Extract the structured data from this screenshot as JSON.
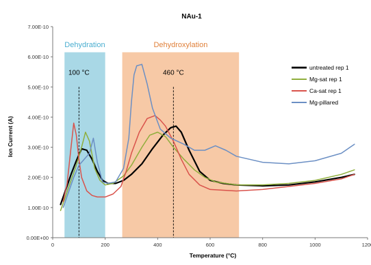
{
  "chart_data": {
    "type": "line",
    "title": "NAu-1",
    "xlabel": "Temperature (°C)",
    "ylabel": "Ion Current (A)",
    "xlim": [
      0,
      1200
    ],
    "ylim": [
      0,
      7e-10
    ],
    "x_ticks": [
      0,
      200,
      400,
      600,
      800,
      1000,
      1200
    ],
    "x_tick_labels": [
      "0",
      "200",
      "400",
      "600",
      "800",
      "1000",
      "1200"
    ],
    "y_ticks": [
      0,
      1e-10,
      2e-10,
      3e-10,
      4e-10,
      5e-10,
      6e-10,
      7e-10
    ],
    "y_tick_labels": [
      "0.00E+00",
      "1.00E-10",
      "2.00E-10",
      "3.00E-10",
      "4.00E-10",
      "5.00E-10",
      "6.00E-10",
      "7.00E-10"
    ],
    "grid": false,
    "legend_position": "right",
    "regions": [
      {
        "label": "Dehydration",
        "x": [
          45,
          200
        ],
        "color": "#a9d8e6",
        "text_color": "#4aaed0"
      },
      {
        "label": "Dehydroxylation",
        "x": [
          265,
          710
        ],
        "color": "#f7c9a6",
        "text_color": "#e0803a"
      }
    ],
    "annotations": [
      {
        "label": "100 °C",
        "x": 100,
        "line_top": 5e-10,
        "label_y": 5.4e-10
      },
      {
        "label": "460 °C",
        "x": 460,
        "line_top": 5e-10,
        "label_y": 5.4e-10
      }
    ],
    "series": [
      {
        "name": "untreated rep 1",
        "color": "#000000",
        "width": 2.2,
        "x": [
          30,
          50,
          70,
          90,
          110,
          130,
          150,
          170,
          190,
          210,
          240,
          270,
          300,
          340,
          380,
          420,
          450,
          470,
          490,
          520,
          560,
          600,
          650,
          700,
          800,
          900,
          1000,
          1100,
          1150
        ],
        "y": [
          1.1e-10,
          1.6e-10,
          2.1e-10,
          2.55e-10,
          2.95e-10,
          2.9e-10,
          2.6e-10,
          2.2e-10,
          1.9e-10,
          1.8e-10,
          1.8e-10,
          1.9e-10,
          2.1e-10,
          2.45e-10,
          2.95e-10,
          3.4e-10,
          3.65e-10,
          3.7e-10,
          3.5e-10,
          2.9e-10,
          2.2e-10,
          1.9e-10,
          1.8e-10,
          1.75e-10,
          1.72e-10,
          1.75e-10,
          1.85e-10,
          2e-10,
          2.1e-10
        ]
      },
      {
        "name": "Mg-sat rep 1",
        "color": "#8fae3b",
        "width": 1.5,
        "x": [
          30,
          50,
          70,
          90,
          110,
          125,
          140,
          160,
          180,
          200,
          230,
          270,
          300,
          340,
          370,
          400,
          430,
          460,
          500,
          540,
          580,
          620,
          700,
          800,
          900,
          1000,
          1100,
          1150
        ],
        "y": [
          9e-11,
          1.4e-10,
          1.9e-10,
          2.4e-10,
          3e-10,
          3.5e-10,
          3.2e-10,
          2.3e-10,
          1.9e-10,
          1.75e-10,
          1.8e-10,
          2.05e-10,
          2.4e-10,
          3e-10,
          3.4e-10,
          3.5e-10,
          3.35e-10,
          3e-10,
          2.6e-10,
          2.25e-10,
          2e-10,
          1.85e-10,
          1.75e-10,
          1.75e-10,
          1.8e-10,
          1.9e-10,
          2.1e-10,
          2.25e-10
        ]
      },
      {
        "name": "Ca-sat rep 1",
        "color": "#d9524b",
        "width": 1.5,
        "x": [
          40,
          55,
          70,
          80,
          90,
          100,
          110,
          130,
          150,
          170,
          200,
          230,
          260,
          280,
          300,
          330,
          360,
          390,
          410,
          430,
          460,
          490,
          520,
          560,
          600,
          700,
          800,
          900,
          1000,
          1100,
          1150
        ],
        "y": [
          1.2e-10,
          1.8e-10,
          3e-10,
          3.8e-10,
          3.4e-10,
          2.6e-10,
          2e-10,
          1.55e-10,
          1.4e-10,
          1.35e-10,
          1.35e-10,
          1.45e-10,
          1.7e-10,
          2.2e-10,
          2.8e-10,
          3.5e-10,
          3.95e-10,
          4.05e-10,
          3.9e-10,
          3.7e-10,
          3.2e-10,
          2.6e-10,
          2.1e-10,
          1.75e-10,
          1.6e-10,
          1.55e-10,
          1.6e-10,
          1.7e-10,
          1.8e-10,
          1.95e-10,
          2.1e-10
        ]
      },
      {
        "name": "Mg-pillared",
        "color": "#6b8fc4",
        "width": 1.5,
        "x": [
          40,
          60,
          80,
          100,
          120,
          140,
          155,
          170,
          190,
          210,
          240,
          270,
          290,
          300,
          310,
          320,
          340,
          360,
          380,
          410,
          450,
          500,
          540,
          580,
          620,
          660,
          700,
          800,
          900,
          1000,
          1100,
          1150
        ],
        "y": [
          1e-10,
          1.5e-10,
          2e-10,
          2.4e-10,
          2.6e-10,
          2.8e-10,
          3.3e-10,
          2.5e-10,
          1.85e-10,
          1.8e-10,
          1.85e-10,
          2.3e-10,
          3.3e-10,
          4.5e-10,
          5.4e-10,
          5.7e-10,
          5.75e-10,
          5.1e-10,
          4.3e-10,
          3.6e-10,
          3.3e-10,
          3.1e-10,
          2.9e-10,
          2.9e-10,
          3.05e-10,
          2.9e-10,
          2.7e-10,
          2.5e-10,
          2.45e-10,
          2.55e-10,
          2.8e-10,
          3.1e-10
        ]
      }
    ]
  }
}
